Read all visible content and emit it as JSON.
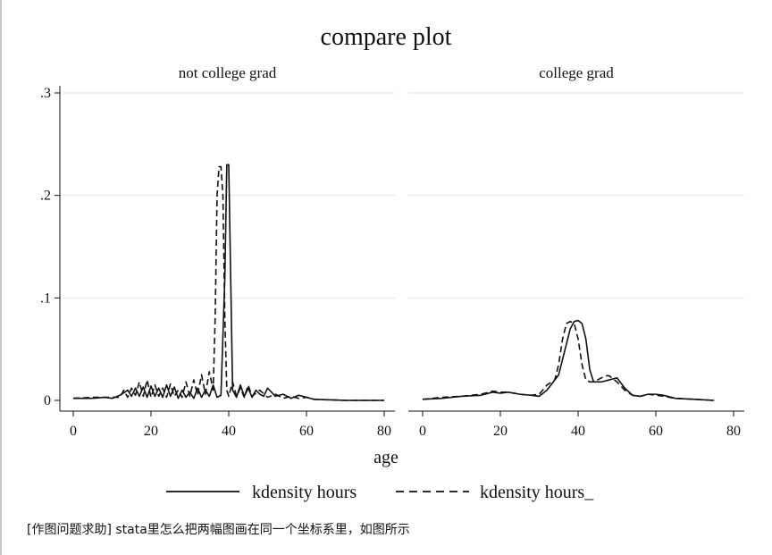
{
  "title": "compare plot",
  "xlabel": "age",
  "caption": "[作图问题求助] stata里怎么把两幅图画在同一个坐标系里，如图所示",
  "legend": {
    "placement": "bottom",
    "entries": [
      {
        "label": "kdensity hours",
        "style": "solid"
      },
      {
        "label": "kdensity hours_",
        "style": "dashed"
      }
    ]
  },
  "chart_data": [
    {
      "type": "line",
      "panel": "not college grad",
      "xlim": [
        0,
        80
      ],
      "ylim": [
        0,
        0.3
      ],
      "xticks": [
        "0",
        "20",
        "40",
        "60",
        "80"
      ],
      "yticks": [
        ".3",
        ".2",
        ".1",
        "0"
      ],
      "ytick_values": [
        0.3,
        0.2,
        0.1,
        0
      ],
      "grid": true,
      "series": [
        {
          "name": "kdensity hours",
          "style": "solid",
          "x": [
            0,
            5,
            8,
            10,
            12,
            14,
            15,
            16,
            17,
            18,
            19,
            20,
            21,
            22,
            23,
            24,
            25,
            26,
            27,
            28,
            29,
            30,
            31,
            32,
            33,
            34,
            35,
            36,
            37,
            38,
            39,
            39.5,
            40,
            40.5,
            41,
            42,
            43,
            44,
            45,
            46,
            47,
            48,
            49,
            50,
            52,
            54,
            56,
            58,
            60,
            62,
            70,
            80
          ],
          "y": [
            0.002,
            0.002,
            0.003,
            0.002,
            0.005,
            0.01,
            0.004,
            0.012,
            0.004,
            0.013,
            0.003,
            0.014,
            0.004,
            0.012,
            0.003,
            0.015,
            0.004,
            0.013,
            0.002,
            0.01,
            0.003,
            0.008,
            0.002,
            0.012,
            0.003,
            0.01,
            0.004,
            0.015,
            0.003,
            0.005,
            0.12,
            0.23,
            0.23,
            0.12,
            0.01,
            0.003,
            0.015,
            0.004,
            0.012,
            0.003,
            0.01,
            0.006,
            0.004,
            0.012,
            0.004,
            0.006,
            0.002,
            0.005,
            0.003,
            0.001,
            0.0,
            0.0
          ]
        },
        {
          "name": "kdensity hours_",
          "style": "dashed",
          "x": [
            0,
            5,
            8,
            10,
            12,
            13,
            14,
            15,
            16,
            17,
            18,
            19,
            20,
            21,
            22,
            23,
            24,
            25,
            26,
            27,
            28,
            29,
            30,
            31,
            32,
            33,
            34,
            35,
            36,
            36.5,
            37,
            37.5,
            38,
            38.5,
            39,
            39.5,
            40,
            41,
            42,
            43,
            44,
            45,
            46,
            48,
            50,
            52,
            54,
            56,
            58,
            60,
            62,
            70,
            80
          ],
          "y": [
            0.002,
            0.003,
            0.003,
            0.003,
            0.003,
            0.01,
            0.003,
            0.012,
            0.005,
            0.018,
            0.004,
            0.02,
            0.003,
            0.015,
            0.004,
            0.012,
            0.003,
            0.016,
            0.004,
            0.01,
            0.003,
            0.018,
            0.004,
            0.02,
            0.005,
            0.025,
            0.006,
            0.028,
            0.01,
            0.08,
            0.2,
            0.228,
            0.228,
            0.2,
            0.08,
            0.01,
            0.004,
            0.018,
            0.004,
            0.012,
            0.003,
            0.015,
            0.004,
            0.01,
            0.003,
            0.006,
            0.002,
            0.004,
            0.002,
            0.003,
            0.001,
            0.0,
            0.0
          ]
        }
      ]
    },
    {
      "type": "line",
      "panel": "college grad",
      "xlim": [
        0,
        80
      ],
      "ylim": [
        0,
        0.3
      ],
      "xticks": [
        "0",
        "20",
        "40",
        "60",
        "80"
      ],
      "grid": true,
      "series": [
        {
          "name": "kdensity hours",
          "style": "solid",
          "x": [
            0,
            5,
            10,
            15,
            18,
            20,
            22,
            25,
            28,
            30,
            32,
            35,
            37,
            38,
            39,
            40,
            41,
            42,
            43,
            44,
            45,
            46,
            48,
            50,
            52,
            54,
            56,
            58,
            60,
            62,
            65,
            70,
            75
          ],
          "y": [
            0.001,
            0.002,
            0.004,
            0.005,
            0.008,
            0.007,
            0.008,
            0.006,
            0.005,
            0.004,
            0.01,
            0.025,
            0.055,
            0.07,
            0.077,
            0.078,
            0.075,
            0.06,
            0.03,
            0.018,
            0.018,
            0.018,
            0.02,
            0.022,
            0.012,
            0.005,
            0.004,
            0.006,
            0.006,
            0.005,
            0.002,
            0.001,
            0.0
          ]
        },
        {
          "name": "kdensity hours_",
          "style": "dashed",
          "x": [
            0,
            5,
            10,
            15,
            18,
            20,
            22,
            25,
            28,
            30,
            32,
            34,
            35,
            36,
            37,
            38,
            39,
            40,
            41,
            42,
            43,
            44,
            45,
            46,
            47,
            48,
            50,
            52,
            54,
            56,
            58,
            60,
            62,
            65,
            70,
            75
          ],
          "y": [
            0.001,
            0.003,
            0.004,
            0.006,
            0.009,
            0.008,
            0.008,
            0.006,
            0.005,
            0.006,
            0.015,
            0.02,
            0.035,
            0.06,
            0.075,
            0.077,
            0.075,
            0.06,
            0.035,
            0.02,
            0.018,
            0.018,
            0.02,
            0.022,
            0.024,
            0.024,
            0.018,
            0.01,
            0.005,
            0.004,
            0.006,
            0.005,
            0.004,
            0.002,
            0.001,
            0.0
          ]
        }
      ]
    }
  ]
}
